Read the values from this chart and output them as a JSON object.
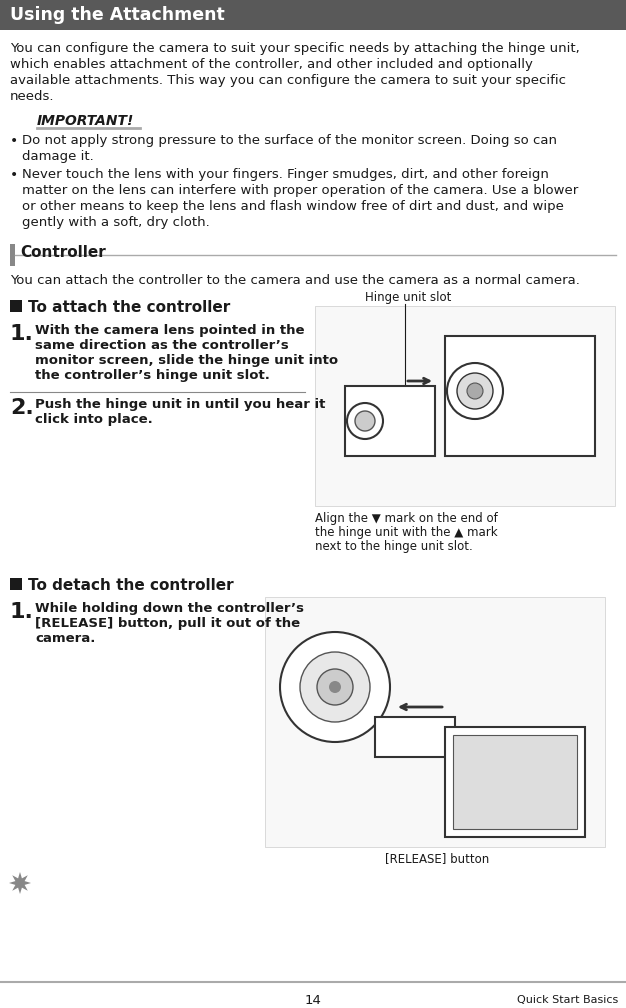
{
  "title": "Using the Attachment",
  "title_bg": "#595959",
  "title_color": "#ffffff",
  "page_bg": "#ffffff",
  "body_color": "#1a1a1a",
  "intro_lines": [
    "You can configure the camera to suit your specific needs by attaching the hinge unit,",
    "which enables attachment of the controller, and other included and optionally",
    "available attachments. This way you can configure the camera to suit your specific",
    "needs."
  ],
  "important_label": "IMPORTANT!",
  "imp_underline_color": "#aaaaaa",
  "bullet1_lines": [
    "Do not apply strong pressure to the surface of the monitor screen. Doing so can",
    "damage it."
  ],
  "bullet2_lines": [
    "Never touch the lens with your fingers. Finger smudges, dirt, and other foreign",
    "matter on the lens can interfere with proper operation of the camera. Use a blower",
    "or other means to keep the lens and flash window free of dirt and dust, and wipe",
    "gently with a soft, dry cloth."
  ],
  "controller_section": "Controller",
  "ctrl_bar_color": "#888888",
  "ctrl_line_color": "#aaaaaa",
  "controller_intro": "You can attach the controller to the camera and use the camera as a normal camera.",
  "attach_header": "To attach the controller",
  "attach_step1_lines": [
    "With the camera lens pointed in the",
    "same direction as the controller’s",
    "monitor screen, slide the hinge unit into",
    "the controller’s hinge unit slot."
  ],
  "attach_step2_lines": [
    "Push the hinge unit in until you hear it",
    "click into place."
  ],
  "hinge_label": "Hinge unit slot",
  "align_lines": [
    "Align the ▼ mark on the end of",
    "the hinge unit with the ▲ mark",
    "next to the hinge unit slot."
  ],
  "detach_header": "To detach the controller",
  "detach_step1_lines": [
    "While holding down the controller’s",
    "[RELEASE] button, pull it out of the",
    "camera."
  ],
  "release_label": "[RELEASE] button",
  "page_number": "14",
  "footer_right": "Quick Start Basics",
  "footer_line_color": "#aaaaaa",
  "step_sep_color": "#888888",
  "star_color": "#888888"
}
